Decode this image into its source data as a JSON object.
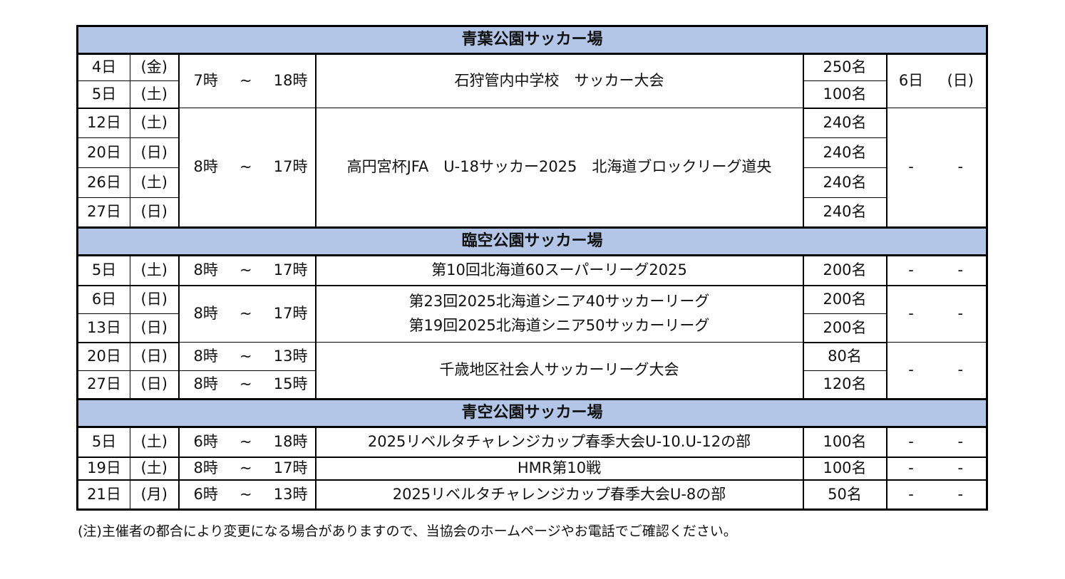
{
  "venues": [
    {
      "name": "青葉公園サッカー場",
      "groups": [
        {
          "rows": [
            {
              "day": "4日",
              "dow": "(金)",
              "count": "250名"
            },
            {
              "day": "5日",
              "dow": "(土)",
              "count": "100名"
            }
          ],
          "times": [
            {
              "start": "7時",
              "sep": "~",
              "end": "18時"
            }
          ],
          "event": [
            "石狩管内中学校　サッカー大会"
          ],
          "rest": {
            "day": "6日",
            "dow": "(日)"
          }
        },
        {
          "rows": [
            {
              "day": "12日",
              "dow": "(土)",
              "count": "240名"
            },
            {
              "day": "20日",
              "dow": "(日)",
              "count": "240名"
            },
            {
              "day": "26日",
              "dow": "(土)",
              "count": "240名"
            },
            {
              "day": "27日",
              "dow": "(日)",
              "count": "240名"
            }
          ],
          "times": [
            {
              "start": "8時",
              "sep": "~",
              "end": "17時"
            }
          ],
          "event": [
            "高円宮杯JFA　U-18サッカー2025　北海道ブロックリーグ道央"
          ],
          "rest": {
            "day": "-",
            "dow": "-"
          }
        }
      ]
    },
    {
      "name": "臨空公園サッカー場",
      "groups": [
        {
          "rows": [
            {
              "day": "5日",
              "dow": "(土)",
              "count": "200名"
            }
          ],
          "times": [
            {
              "start": "8時",
              "sep": "~",
              "end": "17時"
            }
          ],
          "event": [
            "第10回北海道60スーパーリーグ2025"
          ],
          "rest": {
            "day": "-",
            "dow": "-"
          }
        },
        {
          "rows": [
            {
              "day": "6日",
              "dow": "(日)",
              "count": "200名"
            },
            {
              "day": "13日",
              "dow": "(日)",
              "count": "200名"
            }
          ],
          "times": [
            {
              "start": "8時",
              "sep": "~",
              "end": "17時"
            }
          ],
          "event": [
            "第23回2025北海道シニア40サッカーリーグ",
            "第19回2025北海道シニア50サッカーリーグ"
          ],
          "rest": {
            "day": "-",
            "dow": "-"
          }
        },
        {
          "rows": [
            {
              "day": "20日",
              "dow": "(日)",
              "count": "80名"
            },
            {
              "day": "27日",
              "dow": "(日)",
              "count": "120名"
            }
          ],
          "times": [
            {
              "start": "8時",
              "sep": "~",
              "end": "13時"
            },
            {
              "start": "8時",
              "sep": "~",
              "end": "15時"
            }
          ],
          "event": [
            "千歳地区社会人サッカーリーグ大会"
          ],
          "rest": {
            "day": "-",
            "dow": "-"
          }
        }
      ]
    },
    {
      "name": "青空公園サッカー場",
      "groups": [
        {
          "rows": [
            {
              "day": "5日",
              "dow": "(土)",
              "count": "100名"
            }
          ],
          "times": [
            {
              "start": "6時",
              "sep": "~",
              "end": "18時"
            }
          ],
          "event": [
            "2025リベルタチャレンジカップ春季大会U-10.U-12の部"
          ],
          "rest": {
            "day": "-",
            "dow": "-"
          }
        },
        {
          "rows": [
            {
              "day": "19日",
              "dow": "(土)",
              "count": "100名"
            }
          ],
          "times": [
            {
              "start": "8時",
              "sep": "~",
              "end": "17時"
            }
          ],
          "event": [
            "HMR第10戦"
          ],
          "rest": {
            "day": "-",
            "dow": "-"
          }
        },
        {
          "rows": [
            {
              "day": "21日",
              "dow": "(月)",
              "count": "50名"
            }
          ],
          "times": [
            {
              "start": "6時",
              "sep": "~",
              "end": "13時"
            }
          ],
          "event": [
            "2025リベルタチャレンジカップ春季大会U-8の部"
          ],
          "rest": {
            "day": "-",
            "dow": "-"
          }
        }
      ]
    }
  ],
  "note": "(注)主催者の都合により変更になる場合がありますので、当協会のホームページやお電話でご確認ください。"
}
